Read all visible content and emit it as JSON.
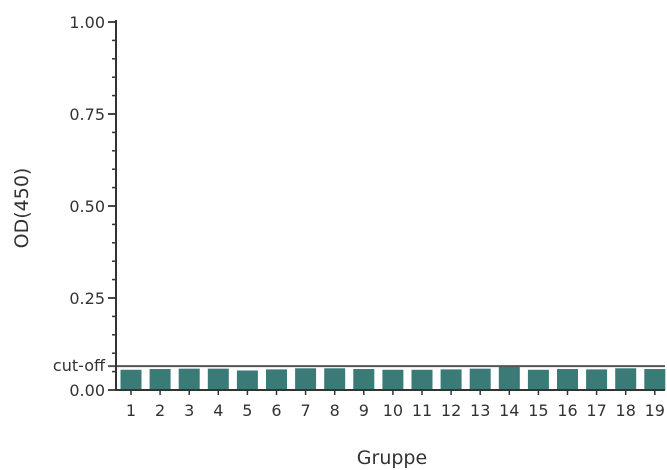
{
  "chart_data": {
    "type": "bar",
    "title": "",
    "xlabel": "Gruppe",
    "ylabel": "OD(450)",
    "categories": [
      "1",
      "2",
      "3",
      "4",
      "5",
      "6",
      "7",
      "8",
      "9",
      "10",
      "11",
      "12",
      "13",
      "14",
      "15",
      "16",
      "17",
      "18",
      "19"
    ],
    "series": [
      {
        "values": [
          0.055,
          0.057,
          0.058,
          0.058,
          0.053,
          0.056,
          0.059,
          0.059,
          0.057,
          0.055,
          0.055,
          0.056,
          0.058,
          0.066,
          0.055,
          0.057,
          0.056,
          0.059,
          0.057
        ]
      }
    ],
    "ylim": [
      0,
      1
    ],
    "yticks": [
      {
        "value": 0,
        "label": "0.00"
      },
      {
        "value": 0.25,
        "label": "0.25"
      },
      {
        "value": 0.5,
        "label": "0.50"
      },
      {
        "value": 0.75,
        "label": "0.75"
      },
      {
        "value": 1,
        "label": "1.00"
      }
    ],
    "cutoff": {
      "value": 0.065,
      "label": "cut-off"
    },
    "bar_color": "#3a7b78",
    "axis_color": "#333333",
    "cutoff_color": "#555555",
    "grid": false,
    "legend": "none"
  }
}
